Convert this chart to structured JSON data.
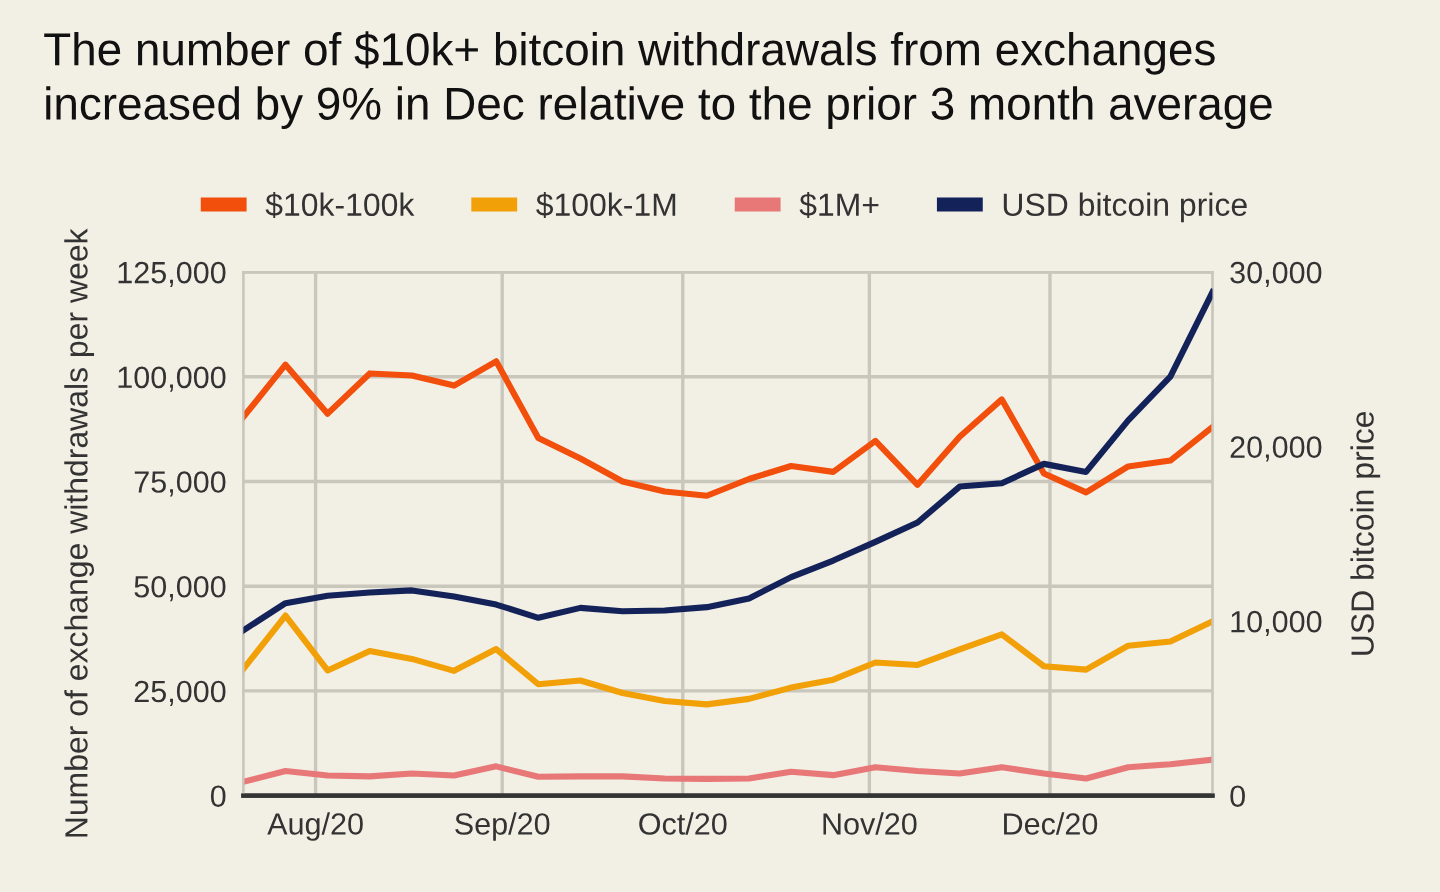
{
  "chart_data": {
    "type": "line",
    "title": "The number of $10k+ bitcoin withdrawals from exchanges\nincreased by 9% in Dec relative to the prior 3 month average",
    "ylabel": "Number of exchange withdrawals per week",
    "y2label": "USD bitcoin price",
    "x": [
      "2020-07-20",
      "2020-07-27",
      "2020-08-03",
      "2020-08-10",
      "2020-08-17",
      "2020-08-24",
      "2020-08-31",
      "2020-09-07",
      "2020-09-14",
      "2020-09-21",
      "2020-09-28",
      "2020-10-05",
      "2020-10-12",
      "2020-10-19",
      "2020-10-26",
      "2020-11-02",
      "2020-11-09",
      "2020-11-16",
      "2020-11-23",
      "2020-11-30",
      "2020-12-07",
      "2020-12-14",
      "2020-12-21",
      "2020-12-28"
    ],
    "series": [
      {
        "name": "$10k-100k",
        "color": "#f24e0c",
        "values": [
          90400,
          102900,
          91200,
          100800,
          100300,
          97900,
          103700,
          85400,
          80500,
          75000,
          72600,
          71600,
          75600,
          78700,
          77300,
          84700,
          74200,
          85700,
          94600,
          76900,
          72400,
          78600,
          80000,
          88000
        ]
      },
      {
        "name": "$100k-1M",
        "color": "#f2a007",
        "values": [
          30250,
          43000,
          29900,
          34550,
          32650,
          29800,
          35000,
          26600,
          27500,
          24500,
          22600,
          21800,
          23100,
          25800,
          27700,
          31800,
          31200,
          34900,
          38500,
          30900,
          30100,
          35800,
          36800,
          41600
        ]
      },
      {
        "name": "$1M+",
        "color": "#e87878",
        "values": [
          3300,
          5900,
          4800,
          4600,
          5300,
          4800,
          7000,
          4500,
          4600,
          4600,
          4100,
          4000,
          4100,
          5700,
          4900,
          6800,
          5900,
          5300,
          6800,
          5300,
          4100,
          6800,
          7500,
          8600
        ]
      },
      {
        "name": "USD bitcoin price",
        "color": "#14225a",
        "axis": "y2",
        "values": [
          9470,
          11030,
          11450,
          11640,
          11760,
          11410,
          10950,
          10190,
          10760,
          10570,
          10610,
          10800,
          11300,
          12520,
          13470,
          14540,
          15650,
          17710,
          17900,
          19010,
          18550,
          21500,
          24010,
          28850
        ]
      }
    ],
    "xlim": [
      "2020-07-20",
      "2020-12-28"
    ],
    "xticks": [
      {
        "value": "2020-08-01",
        "label": "Aug/20"
      },
      {
        "value": "2020-09-01",
        "label": "Sep/20"
      },
      {
        "value": "2020-10-01",
        "label": "Oct/20"
      },
      {
        "value": "2020-11-01",
        "label": "Nov/20"
      },
      {
        "value": "2020-12-01",
        "label": "Dec/20"
      }
    ],
    "ylim": [
      0,
      125000
    ],
    "yticks": [
      {
        "value": 0,
        "label": "0"
      },
      {
        "value": 25000,
        "label": "25,000"
      },
      {
        "value": 50000,
        "label": "50,000"
      },
      {
        "value": 75000,
        "label": "75,000"
      },
      {
        "value": 100000,
        "label": "100,000"
      },
      {
        "value": 125000,
        "label": "125,000"
      }
    ],
    "y2lim": [
      0,
      30000
    ],
    "y2ticks": [
      {
        "value": 0,
        "label": "0"
      },
      {
        "value": 10000,
        "label": "10,000"
      },
      {
        "value": 20000,
        "label": "20,000"
      },
      {
        "value": 30000,
        "label": "30,000"
      }
    ],
    "grid": true,
    "legend": "top",
    "marker": "none",
    "line_style": "solid"
  }
}
